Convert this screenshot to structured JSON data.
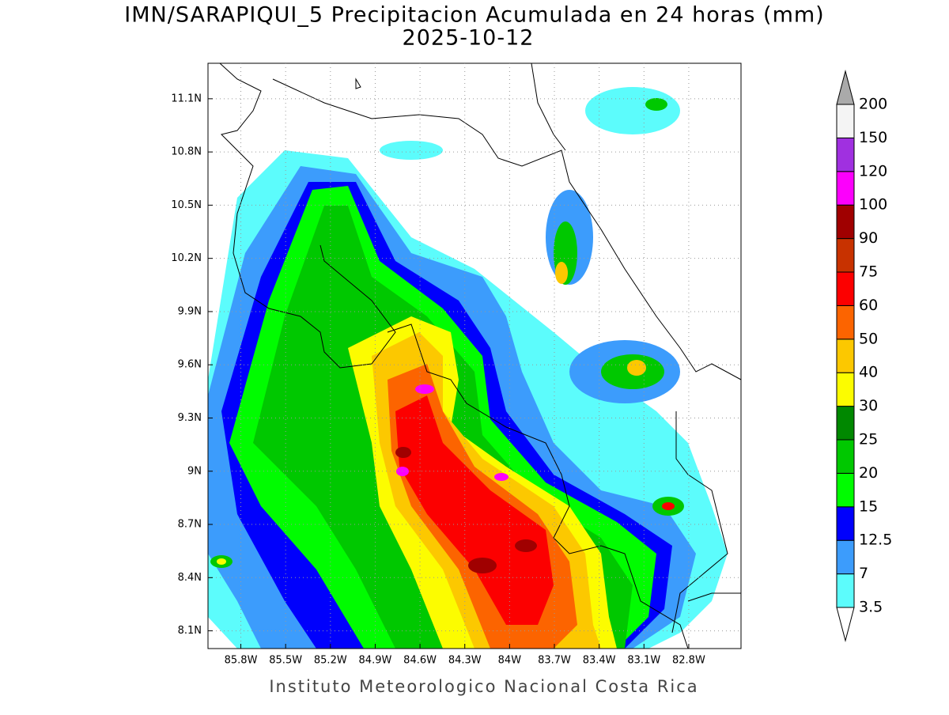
{
  "map": {
    "title": "IMN/SARAPIQUI_5 Precipitacion Acumulada en 24 horas (mm)",
    "subtitle": "2025-10-12",
    "footer": "Instituto Meteorologico Nacional Costa Rica",
    "xlim": [
      -86.02,
      -82.45
    ],
    "ylim": [
      8.0,
      11.3
    ],
    "xticks": [
      {
        "value": -85.8,
        "label": "85.8W"
      },
      {
        "value": -85.5,
        "label": "85.5W"
      },
      {
        "value": -85.2,
        "label": "85.2W"
      },
      {
        "value": -84.9,
        "label": "84.9W"
      },
      {
        "value": -84.6,
        "label": "84.6W"
      },
      {
        "value": -84.3,
        "label": "84.3W"
      },
      {
        "value": -84.0,
        "label": "84W"
      },
      {
        "value": -83.7,
        "label": "83.7W"
      },
      {
        "value": -83.4,
        "label": "83.4W"
      },
      {
        "value": -83.1,
        "label": "83.1W"
      },
      {
        "value": -82.8,
        "label": "82.8W"
      }
    ],
    "yticks": [
      {
        "value": 11.1,
        "label": "11.1N"
      },
      {
        "value": 10.8,
        "label": "10.8N"
      },
      {
        "value": 10.5,
        "label": "10.5N"
      },
      {
        "value": 10.2,
        "label": "10.2N"
      },
      {
        "value": 9.9,
        "label": "9.9N"
      },
      {
        "value": 9.6,
        "label": "9.6N"
      },
      {
        "value": 9.3,
        "label": "9.3N"
      },
      {
        "value": 9.0,
        "label": "9N"
      },
      {
        "value": 8.7,
        "label": "8.7N"
      },
      {
        "value": 8.4,
        "label": "8.4N"
      },
      {
        "value": 8.1,
        "label": "8.1N"
      }
    ],
    "grid": true
  },
  "colorbar": {
    "levels": [
      3.5,
      7,
      12.5,
      15,
      20,
      25,
      30,
      40,
      50,
      60,
      75,
      90,
      100,
      120,
      150,
      200
    ],
    "colors": [
      "#5cfcfc",
      "#3c9cfc",
      "#0000fc",
      "#00fc00",
      "#00c800",
      "#008800",
      "#fcfc00",
      "#fcc800",
      "#fc6400",
      "#fc0000",
      "#c83200",
      "#a00000",
      "#fc00fc",
      "#a030e0",
      "#f4f4f4"
    ],
    "over_color": "#aaaaaa",
    "under_color": "#ffffff"
  }
}
